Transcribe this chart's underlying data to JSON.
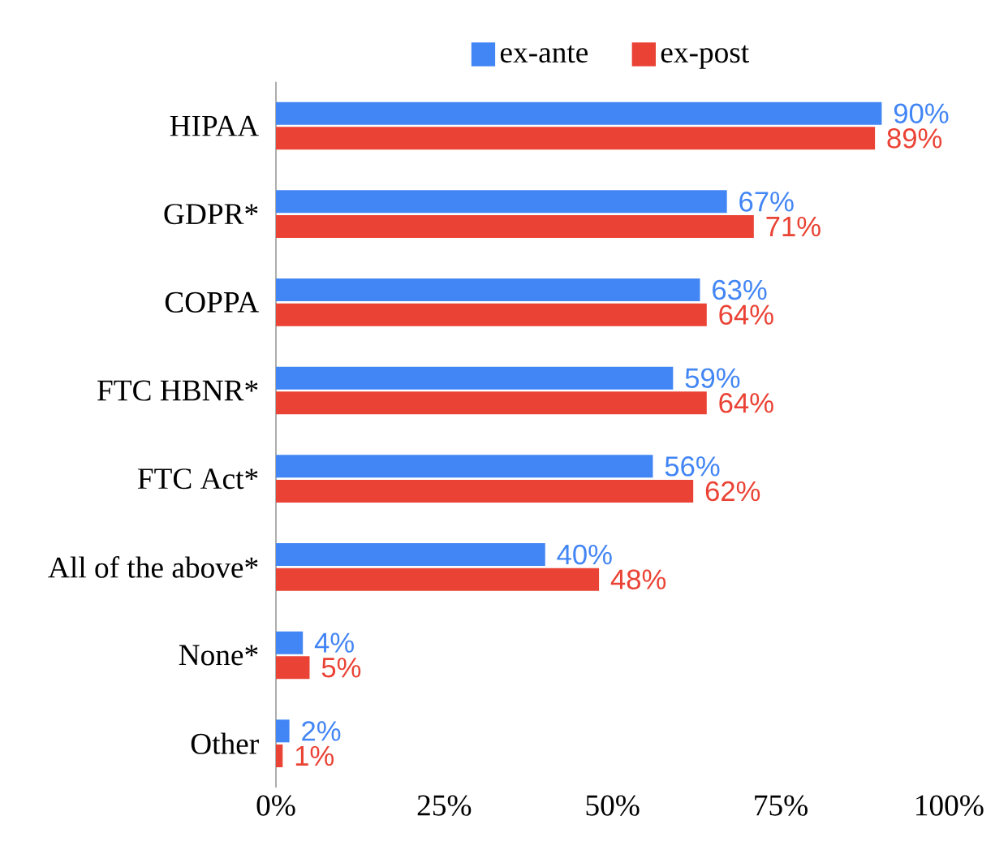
{
  "chart_data": {
    "type": "bar",
    "orientation": "horizontal",
    "categories": [
      "HIPAA",
      "GDPR*",
      "COPPA",
      "FTC HBNR*",
      "FTC Act*",
      "All of the above*",
      "None*",
      "Other"
    ],
    "series": [
      {
        "name": "ex-ante",
        "color": "#4285f4",
        "values": [
          90,
          67,
          63,
          59,
          56,
          40,
          4,
          2
        ],
        "value_labels": [
          "90%",
          "67%",
          "63%",
          "59%",
          "56%",
          "40%",
          "4%",
          "2%"
        ]
      },
      {
        "name": "ex-post",
        "color": "#ea4335",
        "values": [
          89,
          71,
          64,
          64,
          62,
          48,
          5,
          1
        ],
        "value_labels": [
          "89%",
          "71%",
          "64%",
          "64%",
          "62%",
          "48%",
          "5%",
          "1%"
        ]
      }
    ],
    "xlim": [
      0,
      100
    ],
    "xticks": [
      {
        "value": 0,
        "label": "0%"
      },
      {
        "value": 25,
        "label": "25%"
      },
      {
        "value": 50,
        "label": "50%"
      },
      {
        "value": 75,
        "label": "75%"
      },
      {
        "value": 100,
        "label": "100%"
      }
    ],
    "legend": "top",
    "grid": false
  }
}
